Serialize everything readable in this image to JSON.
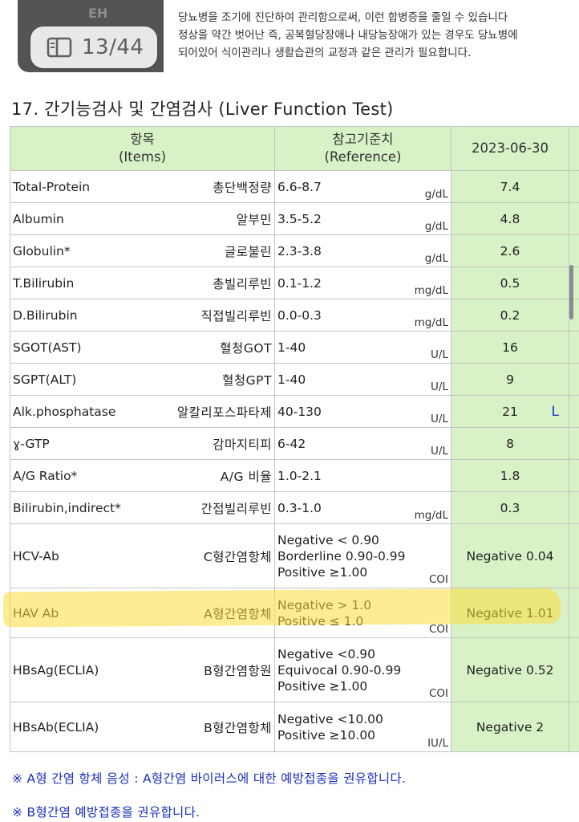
{
  "viewer": {
    "page_counter": "13/44",
    "page_icon": "book-icon"
  },
  "previous_page_text": {
    "line0": "",
    "line1": "당뇨병을 조기에 진단하여 관리함으로써, 이런 합병증을 줄일 수 있습니다",
    "line2": "정상을 약간 벗어난 즉, 공복혈당장애나 내당능장애가 있는 경우도 당뇨병에",
    "line3": "되어있어 식이관리나 생활습관의 교정과 같은 관리가 필요합니다."
  },
  "section": {
    "title": "17. 간기능검사 및 간염검사 (Liver Function Test)"
  },
  "table": {
    "header": {
      "items_ko": "항목",
      "items_en": "(Items)",
      "reference_ko": "참고기준치",
      "reference_en": "(Reference)",
      "date": "2023-06-30"
    },
    "rows": [
      {
        "en": "Total-Protein",
        "ko": "총단백정량",
        "ref": [
          "6.6-8.7"
        ],
        "unit": "g/dL",
        "value": "7.4",
        "flag": ""
      },
      {
        "en": "Albumin",
        "ko": "알부민",
        "ref": [
          "3.5-5.2"
        ],
        "unit": "g/dL",
        "value": "4.8",
        "flag": ""
      },
      {
        "en": "Globulin*",
        "ko": "글로불린",
        "ref": [
          "2.3-3.8"
        ],
        "unit": "g/dL",
        "value": "2.6",
        "flag": ""
      },
      {
        "en": "T.Bilirubin",
        "ko": "총빌리루빈",
        "ref": [
          "0.1-1.2"
        ],
        "unit": "mg/dL",
        "value": "0.5",
        "flag": ""
      },
      {
        "en": "D.Bilirubin",
        "ko": "직접빌리루빈",
        "ref": [
          "0.0-0.3"
        ],
        "unit": "mg/dL",
        "value": "0.2",
        "flag": ""
      },
      {
        "en": "SGOT(AST)",
        "ko": "혈청GOT",
        "ref": [
          "1-40"
        ],
        "unit": "U/L",
        "value": "16",
        "flag": ""
      },
      {
        "en": "SGPT(ALT)",
        "ko": "혈청GPT",
        "ref": [
          "1-40"
        ],
        "unit": "U/L",
        "value": "9",
        "flag": ""
      },
      {
        "en": "Alk.phosphatase",
        "ko": "알칼리포스파타제",
        "ref": [
          "40-130"
        ],
        "unit": "U/L",
        "value": "21",
        "flag": "L"
      },
      {
        "en": "ɣ-GTP",
        "ko": "감마지티피",
        "ref": [
          "6-42"
        ],
        "unit": "U/L",
        "value": "8",
        "flag": ""
      },
      {
        "en": "A/G Ratio*",
        "ko": "A/G 비율",
        "ref": [
          "1.0-2.1"
        ],
        "unit": "",
        "value": "1.8",
        "flag": ""
      },
      {
        "en": "Bilirubin,indirect*",
        "ko": "간접빌리루빈",
        "ref": [
          "0.3-1.0"
        ],
        "unit": "mg/dL",
        "value": "0.3",
        "flag": ""
      },
      {
        "en": "HCV-Ab",
        "ko": "C형간염항체",
        "ref": [
          "Negative < 0.90",
          "Borderline 0.90-0.99",
          "Positive ≥1.00"
        ],
        "unit": "COI",
        "value": "Negative 0.04",
        "flag": ""
      },
      {
        "en": "HAV Ab",
        "ko": "A형간염항체",
        "ref": [
          "Negative > 1.0",
          "Positive ≤ 1.0"
        ],
        "unit": "COI",
        "value": "Negative 1.01",
        "flag": ""
      },
      {
        "en": "HBsAg(ECLIA)",
        "ko": "B형간염항원",
        "ref": [
          "Negative  <0.90",
          "Equivocal 0.90-0.99",
          "Positive  ≥1.00"
        ],
        "unit": "COI",
        "value": "Negative 0.52",
        "flag": ""
      },
      {
        "en": "HBsAb(ECLIA)",
        "ko": "B형간염항체",
        "ref": [
          "Negative <10.00",
          "Positive ≥10.00"
        ],
        "unit": "IU/L",
        "value": "Negative 2",
        "flag": ""
      }
    ]
  },
  "notes": {
    "note1": "※ A형 간염 항체 음성 : A형간염 바이러스에 대한 예방접종을 권유합니다.",
    "note2": "※ B형간염 예방접종을 권유합니다."
  }
}
